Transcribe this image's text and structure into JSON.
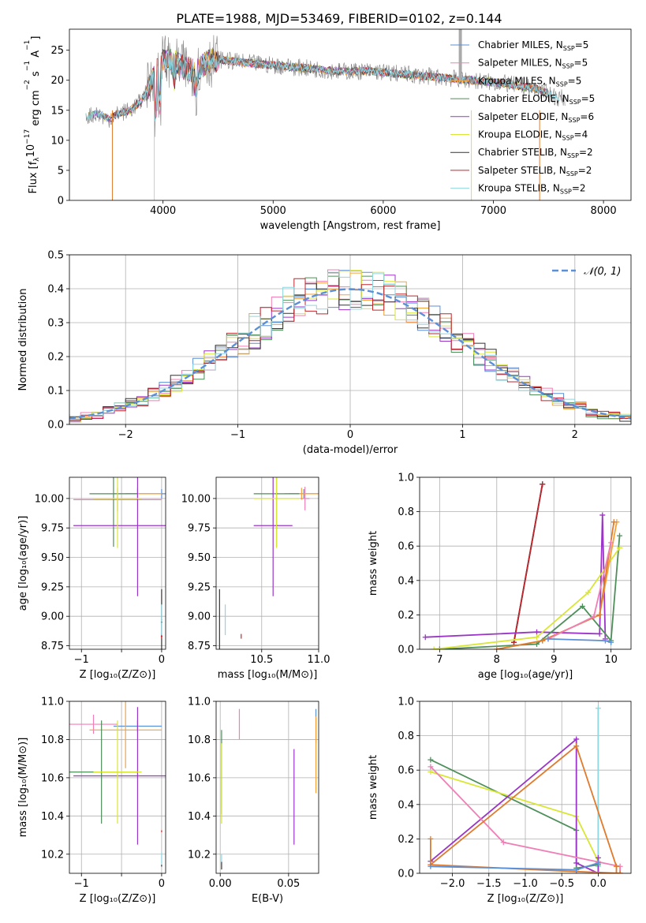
{
  "figure_title": "PLATE=1988, MJD=53469, FIBERID=0102, z=0.144",
  "colors": {
    "chabrier_miles": "#5b8fd6",
    "salpeter_miles": "#f07fb5",
    "kroupa_miles": "#f5a23a",
    "chabrier_elodie": "#4e8f5a",
    "salpeter_elodie": "#9b35c7",
    "kroupa_elodie": "#d9e635",
    "chabrier_stelib": "#333333",
    "salpeter_stelib": "#c0272d",
    "kroupa_stelib": "#8ed6e0",
    "data": "#7f7f7f",
    "orange": "#e07b2e",
    "gauss": "#5b8fd6",
    "grid": "#b0b0b0"
  },
  "chart_data": [
    {
      "id": "spectrum",
      "type": "line",
      "xlabel": "wavelength [Angstrom, rest frame]",
      "ylabel": "Flux [f_λ10⁻¹⁷ erg cm⁻² s⁻¹ A⁻¹]",
      "ylabel_parts": [
        "Flux [f",
        "λ",
        "10",
        "−17",
        " erg cm",
        "−2",
        " s",
        "−1",
        " A",
        "−1",
        "]"
      ],
      "xlim": [
        3150,
        8250
      ],
      "ylim": [
        0,
        28.5
      ],
      "xticks": [
        4000,
        5000,
        6000,
        7000,
        8000
      ],
      "yticks": [
        0,
        5,
        10,
        15,
        20,
        25
      ],
      "grid": false,
      "legend_position": "upper-right",
      "legend": [
        {
          "label": "Chabrier MILES, N",
          "sub": "SSP",
          "eq": "=5",
          "color": "chabrier_miles"
        },
        {
          "label": "Salpeter MILES, N",
          "sub": "SSP",
          "eq": "=5",
          "color": "salpeter_miles"
        },
        {
          "label": "Kroupa MILES, N",
          "sub": "SSP",
          "eq": "=5",
          "color": "kroupa_miles"
        },
        {
          "label": "Chabrier ELODIE, N",
          "sub": "SSP",
          "eq": "=5",
          "color": "chabrier_elodie"
        },
        {
          "label": "Salpeter ELODIE, N",
          "sub": "SSP",
          "eq": "=6",
          "color": "salpeter_elodie"
        },
        {
          "label": "Kroupa ELODIE, N",
          "sub": "SSP",
          "eq": "=4",
          "color": "kroupa_elodie"
        },
        {
          "label": "Chabrier STELIB, N",
          "sub": "SSP",
          "eq": "=2",
          "color": "chabrier_stelib"
        },
        {
          "label": "Salpeter STELIB, N",
          "sub": "SSP",
          "eq": "=2",
          "color": "salpeter_stelib"
        },
        {
          "label": "Kroupa STELIB, N",
          "sub": "SSP",
          "eq": "=2",
          "color": "kroupa_stelib"
        }
      ],
      "data_series": {
        "x": [
          3300,
          3400,
          3500,
          3600,
          3700,
          3800,
          3900,
          4000,
          4100,
          4200,
          4300,
          4400,
          4500,
          4700,
          5000,
          5300,
          5600,
          5900,
          6200,
          6500,
          6800,
          7100,
          7400,
          7600
        ],
        "y": [
          14.0,
          14.5,
          13.5,
          14.5,
          15.0,
          16.5,
          20.0,
          23.5,
          23.0,
          22.0,
          21.5,
          23.0,
          23.5,
          23.0,
          22.5,
          22.0,
          21.5,
          21.5,
          21.0,
          20.5,
          20.0,
          19.5,
          18.5,
          17.0
        ]
      },
      "cutoffs": [
        {
          "wavelength": 3540,
          "color": "orange"
        },
        {
          "wavelength": 3920,
          "color": "kroupa_elodie"
        },
        {
          "wavelength": 6800,
          "color": "kroupa_elodie"
        },
        {
          "wavelength": 7420,
          "color": "orange"
        }
      ]
    },
    {
      "id": "residuals",
      "type": "line",
      "xlabel": "(data-model)/error",
      "ylabel": "Normed distribution",
      "xlim": [
        -2.5,
        2.5
      ],
      "ylim": [
        0,
        0.5
      ],
      "xticks": [
        -2,
        -1,
        0,
        1,
        2
      ],
      "yticks": [
        0.0,
        0.1,
        0.2,
        0.3,
        0.4,
        0.5
      ],
      "grid": true,
      "legend_position": "upper-right",
      "legend_label": "𝒩(0, 1)",
      "gauss": {
        "mu": 0,
        "sigma": 1
      }
    },
    {
      "id": "age_vs_Z",
      "type": "scatter",
      "xlabel": "Z [log₁₀(Z/Z⊙)]",
      "ylabel": "age  [log₁₀(age/yr)]",
      "xlim": [
        -1.15,
        0.05
      ],
      "ylim": [
        8.72,
        10.18
      ],
      "xticks": [
        -1,
        -0.5,
        0
      ],
      "xticklabels": [
        "−1",
        "",
        "0"
      ],
      "yticks": [
        8.75,
        9.0,
        9.25,
        9.5,
        9.75,
        10.0
      ],
      "grid": true,
      "crosses": [
        {
          "x": 0.0,
          "y": 10.04,
          "xerr": 0.45,
          "yerr": 0.04,
          "color": "chabrier_miles"
        },
        {
          "x": -0.55,
          "y": 9.99,
          "xerr": 0.55,
          "yerr": 0.1,
          "color": "salpeter_miles"
        },
        {
          "x": -0.3,
          "y": 10.04,
          "xerr": 0.3,
          "yerr": 0.05,
          "color": "kroupa_miles"
        },
        {
          "x": -0.6,
          "y": 10.04,
          "xerr": 0.3,
          "yerr": 0.45,
          "color": "chabrier_elodie"
        },
        {
          "x": -0.3,
          "y": 9.77,
          "xerr": 0.8,
          "yerr": 0.6,
          "color": "salpeter_elodie"
        },
        {
          "x": -0.55,
          "y": 10.0,
          "xerr": 0.3,
          "yerr": 0.42,
          "color": "kroupa_elodie"
        },
        {
          "x": 0.0,
          "y": 8.95,
          "xerr": 0.01,
          "yerr": 0.28,
          "color": "chabrier_stelib"
        },
        {
          "x": 0.0,
          "y": 8.83,
          "xerr": 0.01,
          "yerr": 0.02,
          "color": "salpeter_stelib"
        },
        {
          "x": 0.0,
          "y": 8.97,
          "xerr": 0.01,
          "yerr": 0.13,
          "color": "kroupa_stelib"
        }
      ]
    },
    {
      "id": "age_vs_mass",
      "type": "scatter",
      "xlabel": "mass [log₁₀(M/M⊙)]",
      "ylabel": "",
      "xlim": [
        10.1,
        11.0
      ],
      "ylim": [
        8.72,
        10.18
      ],
      "xticks": [
        10.5,
        11.0
      ],
      "xticklabels": [
        "10.5",
        "11.0"
      ],
      "yticks": [
        8.75,
        9.0,
        9.25,
        9.5,
        9.75,
        10.0
      ],
      "grid": true,
      "crosses": [
        {
          "x": 10.87,
          "y": 10.04,
          "xerr": 0.13,
          "yerr": 0.04,
          "color": "chabrier_miles"
        },
        {
          "x": 10.88,
          "y": 10.0,
          "xerr": 0.04,
          "yerr": 0.1,
          "color": "salpeter_miles"
        },
        {
          "x": 10.85,
          "y": 10.04,
          "xerr": 0.15,
          "yerr": 0.05,
          "color": "kroupa_miles"
        },
        {
          "x": 10.63,
          "y": 10.04,
          "xerr": 0.2,
          "yerr": 0.45,
          "color": "chabrier_elodie"
        },
        {
          "x": 10.6,
          "y": 9.77,
          "xerr": 0.17,
          "yerr": 0.6,
          "color": "salpeter_elodie"
        },
        {
          "x": 10.63,
          "y": 10.0,
          "xerr": 0.2,
          "yerr": 0.42,
          "color": "kroupa_elodie"
        },
        {
          "x": 10.13,
          "y": 8.95,
          "xerr": 0.002,
          "yerr": 0.28,
          "color": "chabrier_stelib"
        },
        {
          "x": 10.32,
          "y": 8.83,
          "xerr": 0.002,
          "yerr": 0.02,
          "color": "salpeter_stelib"
        },
        {
          "x": 10.18,
          "y": 8.97,
          "xerr": 0.002,
          "yerr": 0.13,
          "color": "kroupa_stelib"
        }
      ]
    },
    {
      "id": "weight_vs_age",
      "type": "line",
      "xlabel": "age  [log₁₀(age/yr)]",
      "ylabel": "mass weight",
      "xlim": [
        6.65,
        10.35
      ],
      "ylim": [
        0,
        1.0
      ],
      "xticks": [
        7,
        8,
        9,
        10
      ],
      "yticks": [
        0.0,
        0.2,
        0.4,
        0.6,
        0.8,
        1.0
      ],
      "grid": true,
      "series": [
        {
          "color": "kroupa_stelib",
          "x": [
            8.3,
            8.8
          ],
          "y": [
            0.04,
            0.96
          ]
        },
        {
          "color": "chabrier_stelib",
          "x": [
            8.3,
            8.8
          ],
          "y": [
            0.04,
            0.96
          ]
        },
        {
          "color": "salpeter_stelib",
          "x": [
            8.3,
            8.8
          ],
          "y": [
            0.04,
            0.96
          ]
        },
        {
          "color": "salpeter_elodie",
          "x": [
            6.75,
            8.7,
            9.8,
            9.85,
            9.9
          ],
          "y": [
            0.07,
            0.1,
            0.09,
            0.78,
            0.06
          ]
        },
        {
          "color": "chabrier_elodie",
          "x": [
            7.0,
            8.7,
            9.5,
            10.0,
            10.15
          ],
          "y": [
            0.0,
            0.03,
            0.25,
            0.05,
            0.66
          ]
        },
        {
          "color": "kroupa_elodie",
          "x": [
            6.9,
            8.7,
            9.6,
            10.15
          ],
          "y": [
            0.0,
            0.07,
            0.33,
            0.59
          ]
        },
        {
          "color": "kroupa_miles",
          "x": [
            8.0,
            8.8,
            9.8,
            10.1
          ],
          "y": [
            0.0,
            0.05,
            0.2,
            0.74
          ]
        },
        {
          "color": "orange",
          "x": [
            8.0,
            8.8,
            9.8,
            10.05
          ],
          "y": [
            0.0,
            0.05,
            0.2,
            0.74
          ]
        },
        {
          "color": "salpeter_miles",
          "x": [
            8.9,
            9.7,
            10.0
          ],
          "y": [
            0.06,
            0.19,
            0.62
          ]
        },
        {
          "color": "chabrier_miles",
          "x": [
            8.9,
            9.9,
            10.0
          ],
          "y": [
            0.06,
            0.05,
            0.04
          ]
        }
      ]
    },
    {
      "id": "mass_vs_Z",
      "type": "scatter",
      "xlabel": "Z [log₁₀(Z/Z⊙)]",
      "ylabel": "mass [log₁₀(M/M⊙)]",
      "xlim": [
        -1.15,
        0.05
      ],
      "ylim": [
        10.1,
        11.0
      ],
      "xticks": [
        -1,
        -0.5,
        0
      ],
      "xticklabels": [
        "−1",
        "",
        "0"
      ],
      "yticks": [
        10.2,
        10.4,
        10.6,
        10.8,
        11.0
      ],
      "grid": true,
      "crosses": [
        {
          "x": -0.3,
          "y": 10.87,
          "xerr": 0.3,
          "yerr": 0.03,
          "color": "chabrier_miles"
        },
        {
          "x": -0.85,
          "y": 10.88,
          "xerr": 0.3,
          "yerr": 0.05,
          "color": "salpeter_miles"
        },
        {
          "x": -0.45,
          "y": 10.85,
          "xerr": 0.45,
          "yerr": 0.2,
          "color": "kroupa_miles"
        },
        {
          "x": -0.75,
          "y": 10.63,
          "xerr": 0.45,
          "yerr": 0.27,
          "color": "chabrier_elodie"
        },
        {
          "x": -0.3,
          "y": 10.61,
          "xerr": 0.8,
          "yerr": 0.36,
          "color": "salpeter_elodie"
        },
        {
          "x": -0.55,
          "y": 10.63,
          "xerr": 0.3,
          "yerr": 0.27,
          "color": "kroupa_elodie"
        },
        {
          "x": 0.0,
          "y": 10.14,
          "xerr": 0.005,
          "yerr": 0.005,
          "color": "chabrier_stelib"
        },
        {
          "x": 0.0,
          "y": 10.32,
          "xerr": 0.005,
          "yerr": 0.005,
          "color": "salpeter_stelib"
        },
        {
          "x": 0.0,
          "y": 10.18,
          "xerr": 0.005,
          "yerr": 0.03,
          "color": "kroupa_stelib"
        }
      ]
    },
    {
      "id": "mass_vs_ebv",
      "type": "scatter",
      "xlabel": "E(B-V)",
      "ylabel": "",
      "xlim": [
        -0.003,
        0.072
      ],
      "ylim": [
        10.1,
        11.0
      ],
      "xticks": [
        0.0,
        0.05
      ],
      "xticklabels": [
        "0.00",
        "0.05"
      ],
      "yticks": [
        10.2,
        10.4,
        10.6,
        10.8,
        11.0
      ],
      "grid": true,
      "crosses": [
        {
          "x": 0.07,
          "y": 10.87,
          "xerr": 0.0,
          "yerr": 0.09,
          "color": "chabrier_miles"
        },
        {
          "x": 0.014,
          "y": 10.88,
          "xerr": 0.0,
          "yerr": 0.08,
          "color": "salpeter_miles"
        },
        {
          "x": 0.07,
          "y": 10.72,
          "xerr": 0.0,
          "yerr": 0.2,
          "color": "kroupa_miles"
        },
        {
          "x": 0.001,
          "y": 10.63,
          "xerr": 0.0,
          "yerr": 0.22,
          "color": "chabrier_elodie"
        },
        {
          "x": 0.054,
          "y": 10.5,
          "xerr": 0.0,
          "yerr": 0.25,
          "color": "salpeter_elodie"
        },
        {
          "x": 0.001,
          "y": 10.57,
          "xerr": 0.0,
          "yerr": 0.21,
          "color": "kroupa_elodie"
        },
        {
          "x": 0.001,
          "y": 10.14,
          "xerr": 0.0,
          "yerr": 0.02,
          "color": "chabrier_stelib"
        },
        {
          "x": 0.001,
          "y": 10.18,
          "xerr": 0.0,
          "yerr": 0.02,
          "color": "kroupa_stelib"
        }
      ]
    },
    {
      "id": "weight_vs_Z",
      "type": "line",
      "xlabel": "Z [log₁₀(Z/Z⊙)]",
      "ylabel": "mass weight",
      "xlim": [
        -2.45,
        0.45
      ],
      "ylim": [
        0,
        1.0
      ],
      "xticks": [
        -2.0,
        -1.5,
        -1.0,
        -0.5,
        0.0
      ],
      "xticklabels": [
        "−2.0",
        "−1.5",
        "−1.0",
        "−0.5",
        "0.0"
      ],
      "yticks": [
        0.0,
        0.2,
        0.4,
        0.6,
        0.8,
        1.0
      ],
      "grid": true,
      "series": [
        {
          "color": "kroupa_stelib",
          "x": [
            0.0,
            0.0
          ],
          "y": [
            0.04,
            0.96
          ]
        },
        {
          "color": "chabrier_elodie",
          "x": [
            -2.3,
            -0.3,
            -0.3,
            0.0,
            0.0
          ],
          "y": [
            0.66,
            0.25,
            0.03,
            0.05,
            0.0
          ]
        },
        {
          "color": "kroupa_elodie",
          "x": [
            -2.3,
            -0.3,
            0.0,
            0.0
          ],
          "y": [
            0.59,
            0.33,
            0.07,
            0.0
          ]
        },
        {
          "color": "salpeter_elodie",
          "x": [
            -2.3,
            -0.3,
            -0.3,
            0.0,
            0.0
          ],
          "y": [
            0.07,
            0.78,
            0.06,
            0.0,
            0.09
          ]
        },
        {
          "color": "salpeter_miles",
          "x": [
            -2.3,
            -1.3,
            0.3,
            0.3
          ],
          "y": [
            0.62,
            0.18,
            0.04,
            0.0
          ]
        },
        {
          "color": "orange",
          "x": [
            -2.3,
            -0.3,
            0.3,
            0.3
          ],
          "y": [
            0.05,
            0.01,
            0.0,
            0.0
          ]
        },
        {
          "color": "orange",
          "x": [
            -2.3,
            -2.3,
            -0.3,
            0.25,
            0.25
          ],
          "y": [
            0.2,
            0.05,
            0.74,
            0.04,
            0.0
          ]
        },
        {
          "color": "chabrier_miles",
          "x": [
            -2.3,
            -0.3,
            0.0
          ],
          "y": [
            0.04,
            0.02,
            0.06
          ]
        }
      ]
    }
  ]
}
